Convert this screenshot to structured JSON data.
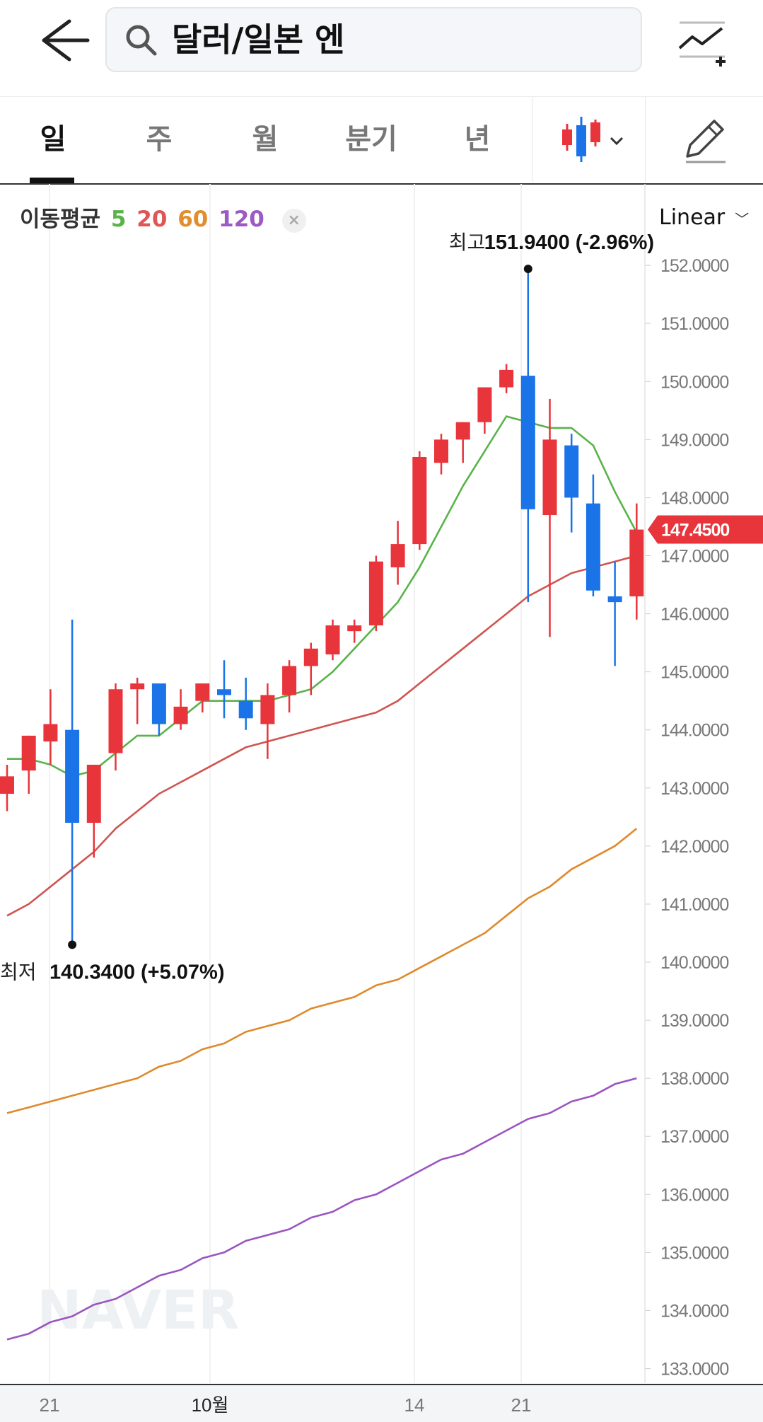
{
  "header": {
    "search_text": "달러/일본 엔",
    "back_icon": "arrow-left-icon",
    "compare_icon": "chart-add-icon"
  },
  "tabs": [
    {
      "label": "일",
      "active": true
    },
    {
      "label": "주",
      "active": false
    },
    {
      "label": "월",
      "active": false
    },
    {
      "label": "분기",
      "active": false
    },
    {
      "label": "년",
      "active": false
    }
  ],
  "toolbar": {
    "chart_type_icon": "candlestick-icon",
    "draw_icon": "pencil-icon"
  },
  "legend": {
    "label": "이동평균",
    "ma5": "5",
    "ma20": "20",
    "ma60": "60",
    "ma120": "120",
    "close_glyph": "×"
  },
  "scale": {
    "label": "Linear"
  },
  "watermark": "NAVER",
  "chart_data": {
    "type": "candlestick",
    "up_color": "#e8343b",
    "down_color": "#1a74e8",
    "ylim": [
      132.75,
      152.55
    ],
    "y_ticks": [
      "152.0000",
      "151.0000",
      "150.0000",
      "149.0000",
      "148.0000",
      "147.0000",
      "146.0000",
      "145.0000",
      "144.0000",
      "143.0000",
      "142.0000",
      "141.0000",
      "140.0000",
      "139.0000",
      "138.0000",
      "137.0000",
      "136.0000",
      "135.0000",
      "134.0000",
      "133.0000"
    ],
    "x_ticks": [
      "21",
      "10월",
      "14",
      "21"
    ],
    "current_price": "147.4500",
    "high_label": {
      "prefix": "최고",
      "value": "151.9400 (-2.96%)"
    },
    "low_label": {
      "prefix": "최저",
      "value": "140.3400 (+5.07%)"
    },
    "candles": [
      {
        "o": 142.9,
        "h": 143.4,
        "l": 142.6,
        "c": 143.2
      },
      {
        "o": 143.3,
        "h": 143.9,
        "l": 142.9,
        "c": 143.9
      },
      {
        "o": 143.8,
        "h": 144.7,
        "l": 143.4,
        "c": 144.1
      },
      {
        "o": 144.0,
        "h": 145.9,
        "l": 140.3,
        "c": 142.4
      },
      {
        "o": 142.4,
        "h": 143.4,
        "l": 141.8,
        "c": 143.4
      },
      {
        "o": 143.6,
        "h": 144.8,
        "l": 143.3,
        "c": 144.7
      },
      {
        "o": 144.7,
        "h": 144.9,
        "l": 144.1,
        "c": 144.8
      },
      {
        "o": 144.8,
        "h": 144.8,
        "l": 143.9,
        "c": 144.1
      },
      {
        "o": 144.1,
        "h": 144.7,
        "l": 144.0,
        "c": 144.4
      },
      {
        "o": 144.5,
        "h": 144.8,
        "l": 144.3,
        "c": 144.8
      },
      {
        "o": 144.7,
        "h": 145.2,
        "l": 144.2,
        "c": 144.6
      },
      {
        "o": 144.5,
        "h": 144.9,
        "l": 144.0,
        "c": 144.2
      },
      {
        "o": 144.1,
        "h": 144.8,
        "l": 143.5,
        "c": 144.6
      },
      {
        "o": 144.6,
        "h": 145.2,
        "l": 144.3,
        "c": 145.1
      },
      {
        "o": 145.1,
        "h": 145.5,
        "l": 144.6,
        "c": 145.4
      },
      {
        "o": 145.3,
        "h": 145.9,
        "l": 145.2,
        "c": 145.8
      },
      {
        "o": 145.7,
        "h": 145.9,
        "l": 145.5,
        "c": 145.8
      },
      {
        "o": 145.8,
        "h": 147.0,
        "l": 145.7,
        "c": 146.9
      },
      {
        "o": 146.8,
        "h": 147.6,
        "l": 146.5,
        "c": 147.2
      },
      {
        "o": 147.2,
        "h": 148.8,
        "l": 147.1,
        "c": 148.7
      },
      {
        "o": 148.6,
        "h": 149.1,
        "l": 148.4,
        "c": 149.0
      },
      {
        "o": 149.0,
        "h": 149.3,
        "l": 148.6,
        "c": 149.3
      },
      {
        "o": 149.3,
        "h": 149.9,
        "l": 149.1,
        "c": 149.9
      },
      {
        "o": 149.9,
        "h": 150.3,
        "l": 149.8,
        "c": 150.2
      },
      {
        "o": 150.1,
        "h": 151.94,
        "l": 146.2,
        "c": 147.8
      },
      {
        "o": 147.7,
        "h": 149.7,
        "l": 145.6,
        "c": 149.0
      },
      {
        "o": 148.9,
        "h": 149.1,
        "l": 147.4,
        "c": 148.0
      },
      {
        "o": 147.9,
        "h": 148.4,
        "l": 146.3,
        "c": 146.4
      },
      {
        "o": 146.3,
        "h": 146.9,
        "l": 145.1,
        "c": 146.2
      },
      {
        "o": 146.3,
        "h": 147.9,
        "l": 145.9,
        "c": 147.45
      }
    ],
    "series": [
      {
        "name": "5",
        "color": "#59b34a",
        "values": [
          143.5,
          143.5,
          143.4,
          143.2,
          143.3,
          143.6,
          143.9,
          143.9,
          144.2,
          144.5,
          144.5,
          144.5,
          144.5,
          144.6,
          144.7,
          145.0,
          145.4,
          145.8,
          146.2,
          146.8,
          147.5,
          148.2,
          148.8,
          149.4,
          149.3,
          149.2,
          149.2,
          148.9,
          148.1,
          147.4
        ]
      },
      {
        "name": "20",
        "color": "#cf5550",
        "values": [
          140.8,
          141.0,
          141.3,
          141.6,
          141.9,
          142.3,
          142.6,
          142.9,
          143.1,
          143.3,
          143.5,
          143.7,
          143.8,
          143.9,
          144.0,
          144.1,
          144.2,
          144.3,
          144.5,
          144.8,
          145.1,
          145.4,
          145.7,
          146.0,
          146.3,
          146.5,
          146.7,
          146.8,
          146.9,
          147.0
        ]
      },
      {
        "name": "60",
        "color": "#de8a2c",
        "values": [
          137.4,
          137.5,
          137.6,
          137.7,
          137.8,
          137.9,
          138.0,
          138.2,
          138.3,
          138.5,
          138.6,
          138.8,
          138.9,
          139.0,
          139.2,
          139.3,
          139.4,
          139.6,
          139.7,
          139.9,
          140.1,
          140.3,
          140.5,
          140.8,
          141.1,
          141.3,
          141.6,
          141.8,
          142.0,
          142.3
        ]
      },
      {
        "name": "120",
        "color": "#9b55c0",
        "values": [
          133.5,
          133.6,
          133.8,
          133.9,
          134.1,
          134.2,
          134.4,
          134.6,
          134.7,
          134.9,
          135.0,
          135.2,
          135.3,
          135.4,
          135.6,
          135.7,
          135.9,
          136.0,
          136.2,
          136.4,
          136.6,
          136.7,
          136.9,
          137.1,
          137.3,
          137.4,
          137.6,
          137.7,
          137.9,
          138.0
        ]
      }
    ]
  }
}
